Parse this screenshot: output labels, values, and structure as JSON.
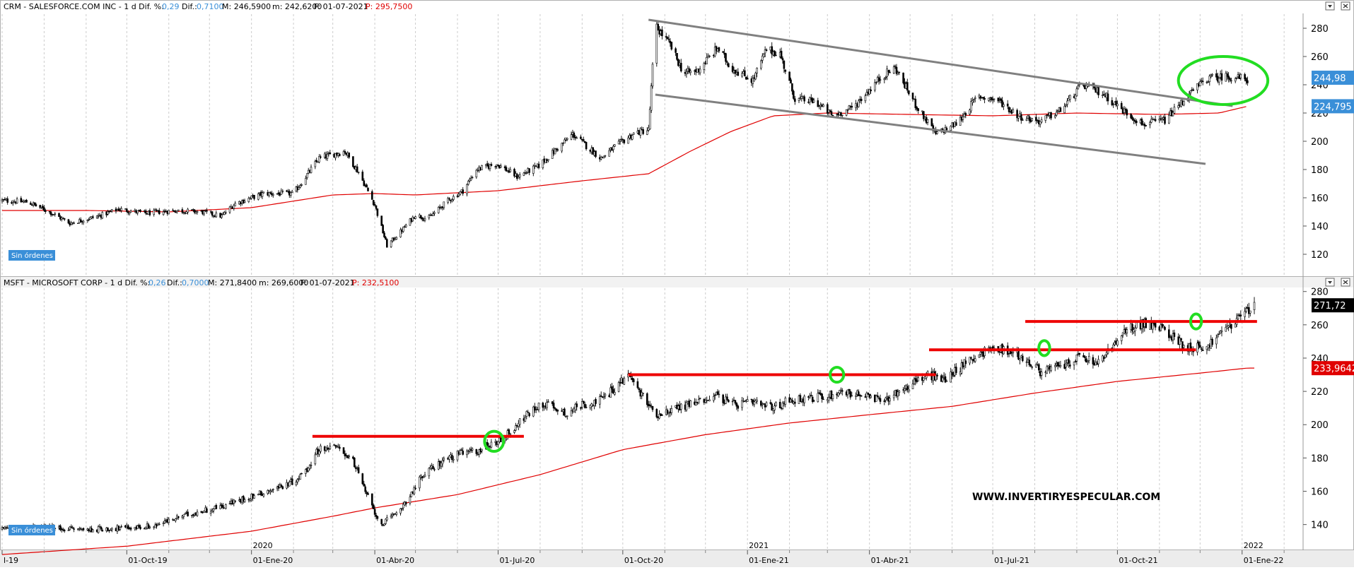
{
  "colors": {
    "candle": "#000000",
    "ma": "#e00000",
    "trend_gray": "#808080",
    "support_red": "#ee0000",
    "highlight_green": "#22dd22",
    "price_tag_blue": "#3a8fd8",
    "ma_tag_red": "#e00000",
    "label_blue": "#3a8fd8",
    "grid": "#cccccc"
  },
  "x_dates": {
    "start": "2019-07-01",
    "end": "2022-02-15",
    "month_ticks": [
      "2019-08-01",
      "2019-09-01",
      "2019-11-01",
      "2019-12-01",
      "2020-02-01",
      "2020-03-01",
      "2020-05-01",
      "2020-06-01",
      "2020-08-01",
      "2020-09-01",
      "2020-11-01",
      "2020-12-01",
      "2021-02-01",
      "2021-03-01",
      "2021-05-01",
      "2021-06-01",
      "2021-08-01",
      "2021-09-01",
      "2021-11-01",
      "2021-12-01",
      "2022-02-01"
    ],
    "labels": [
      {
        "date": "2019-07-01",
        "text": "l-19"
      },
      {
        "date": "2019-10-01",
        "text": "01-Oct-19"
      },
      {
        "date": "2020-01-01",
        "text": "01-Ene-20"
      },
      {
        "date": "2020-04-01",
        "text": "01-Abr-20"
      },
      {
        "date": "2020-07-01",
        "text": "01-Jul-20"
      },
      {
        "date": "2020-10-01",
        "text": "01-Oct-20"
      },
      {
        "date": "2021-01-01",
        "text": "01-Ene-21"
      },
      {
        "date": "2021-04-01",
        "text": "01-Abr-21"
      },
      {
        "date": "2021-07-01",
        "text": "01-Jul-21"
      },
      {
        "date": "2021-10-01",
        "text": "01-Oct-21"
      },
      {
        "date": "2022-01-01",
        "text": "01-Ene-22"
      }
    ],
    "year_marks": [
      {
        "date": "2020-01-01",
        "text": "2020"
      },
      {
        "date": "2021-01-01",
        "text": "2021"
      },
      {
        "date": "2022-01-01",
        "text": "2022"
      }
    ]
  },
  "chart_data": [
    {
      "type": "candlestick",
      "ticker": "CRM",
      "name": "SALESFORCE.COM INC",
      "header": {
        "prefix": "CRM - SALESFORCE.COM INC - 1 d Dif. %:",
        "dif_pct": "0,29",
        "dif_label": "Dif.:",
        "dif": "0,7100",
        "max_label": "M: 246,5900",
        "min_label": "m: 242,6200",
        "date_label": "F: 01-07-2021",
        "p_label": "P: 295,7500"
      },
      "ylim": [
        105,
        290
      ],
      "y_ticks": [
        120,
        140,
        160,
        180,
        200,
        220,
        240,
        260,
        280
      ],
      "price_tag": "244,98",
      "price_tag_value": 244.98,
      "ma_tag": "224,795",
      "ma_tag_value": 224.795,
      "label": "Sin órdenes",
      "close_anchors": [
        [
          "2019-07-01",
          158
        ],
        [
          "2019-07-20",
          157
        ],
        [
          "2019-08-05",
          150
        ],
        [
          "2019-08-20",
          142
        ],
        [
          "2019-09-10",
          147
        ],
        [
          "2019-09-25",
          152
        ],
        [
          "2019-10-15",
          149
        ],
        [
          "2019-11-05",
          151
        ],
        [
          "2019-11-25",
          150
        ],
        [
          "2019-12-10",
          147
        ],
        [
          "2019-12-20",
          156
        ],
        [
          "2020-01-10",
          163
        ],
        [
          "2020-02-01",
          163
        ],
        [
          "2020-02-10",
          175
        ],
        [
          "2020-02-20",
          188
        ],
        [
          "2020-03-10",
          193
        ],
        [
          "2020-03-20",
          178
        ],
        [
          "2020-04-01",
          155
        ],
        [
          "2020-04-10",
          126
        ],
        [
          "2020-04-20",
          136
        ],
        [
          "2020-05-01",
          148
        ],
        [
          "2020-05-10",
          145
        ],
        [
          "2020-05-25",
          158
        ],
        [
          "2020-06-05",
          165
        ],
        [
          "2020-06-15",
          180
        ],
        [
          "2020-06-30",
          184
        ],
        [
          "2020-07-15",
          175
        ],
        [
          "2020-07-30",
          182
        ],
        [
          "2020-08-15",
          196
        ],
        [
          "2020-08-25",
          205
        ],
        [
          "2020-09-05",
          196
        ],
        [
          "2020-09-15",
          188
        ],
        [
          "2020-09-25",
          196
        ],
        [
          "2020-10-10",
          206
        ],
        [
          "2020-10-20",
          208
        ],
        [
          "2020-10-25",
          282
        ],
        [
          "2020-11-05",
          268
        ],
        [
          "2020-11-15",
          248
        ],
        [
          "2020-11-25",
          250
        ],
        [
          "2020-12-10",
          266
        ],
        [
          "2020-12-20",
          252
        ],
        [
          "2021-01-05",
          243
        ],
        [
          "2021-01-15",
          265
        ],
        [
          "2021-01-25",
          262
        ],
        [
          "2021-02-05",
          230
        ],
        [
          "2021-02-20",
          228
        ],
        [
          "2021-03-05",
          218
        ],
        [
          "2021-03-20",
          224
        ],
        [
          "2021-04-10",
          246
        ],
        [
          "2021-04-20",
          252
        ],
        [
          "2021-05-05",
          226
        ],
        [
          "2021-05-20",
          205
        ],
        [
          "2021-06-05",
          213
        ],
        [
          "2021-06-20",
          232
        ],
        [
          "2021-07-05",
          229
        ],
        [
          "2021-07-20",
          218
        ],
        [
          "2021-08-05",
          214
        ],
        [
          "2021-08-20",
          222
        ],
        [
          "2021-09-05",
          240
        ],
        [
          "2021-09-20",
          234
        ],
        [
          "2021-10-05",
          222
        ],
        [
          "2021-10-20",
          212
        ],
        [
          "2021-11-05",
          215
        ],
        [
          "2021-11-20",
          230
        ],
        [
          "2021-12-05",
          244
        ],
        [
          "2021-12-20",
          246
        ],
        [
          "2022-01-05",
          244
        ]
      ],
      "ma_anchors": [
        [
          "2019-07-01",
          151
        ],
        [
          "2019-09-01",
          151
        ],
        [
          "2019-11-01",
          150
        ],
        [
          "2020-01-01",
          153
        ],
        [
          "2020-03-01",
          162
        ],
        [
          "2020-04-01",
          163
        ],
        [
          "2020-05-01",
          162
        ],
        [
          "2020-07-01",
          165
        ],
        [
          "2020-09-01",
          172
        ],
        [
          "2020-10-20",
          177
        ],
        [
          "2020-11-20",
          193
        ],
        [
          "2020-12-20",
          207
        ],
        [
          "2021-01-20",
          218
        ],
        [
          "2021-03-01",
          220
        ],
        [
          "2021-05-01",
          219
        ],
        [
          "2021-07-01",
          218
        ],
        [
          "2021-09-01",
          220
        ],
        [
          "2021-11-01",
          219
        ],
        [
          "2021-12-15",
          220
        ],
        [
          "2022-01-05",
          224.8
        ]
      ],
      "trendlines": [
        {
          "from": [
            "2020-10-20",
            286
          ],
          "to": [
            "2021-12-25",
            225
          ],
          "color": "trend_gray"
        },
        {
          "from": [
            "2020-10-25",
            233
          ],
          "to": [
            "2021-12-05",
            184
          ],
          "color": "trend_gray"
        }
      ],
      "ellipses": [
        {
          "center": [
            "2021-12-18",
            243
          ],
          "rx_days": 33,
          "ry_value": 17,
          "color": "highlight_green"
        }
      ]
    },
    {
      "type": "candlestick",
      "ticker": "MSFT",
      "name": "MICROSOFT CORP",
      "header": {
        "prefix": "MSFT - MICROSOFT CORP - 1 d Dif. %:",
        "dif_pct": "0,26",
        "dif_label": "Dif.:",
        "dif": "0,7000",
        "max_label": "M: 271,8400",
        "min_label": "m: 269,6000",
        "date_label": "F: 01-07-2021",
        "p_label": "P: 232,5100"
      },
      "ylim": [
        125,
        282
      ],
      "y_ticks": [
        140,
        160,
        180,
        200,
        220,
        240,
        260,
        280
      ],
      "price_tag": "271,72",
      "price_tag_value": 271.72,
      "ma_tag": "233,9642",
      "ma_tag_value": 233.9642,
      "label": "Sin órdenes",
      "watermark": "WWW.INVERTIRYESPECULAR.COM",
      "close_anchors": [
        [
          "2019-07-01",
          137
        ],
        [
          "2019-08-01",
          138
        ],
        [
          "2019-09-01",
          137
        ],
        [
          "2019-10-01",
          138
        ],
        [
          "2019-10-20",
          139
        ],
        [
          "2019-11-15",
          146
        ],
        [
          "2019-12-10",
          151
        ],
        [
          "2020-01-01",
          157
        ],
        [
          "2020-01-20",
          162
        ],
        [
          "2020-02-01",
          166
        ],
        [
          "2020-02-10",
          172
        ],
        [
          "2020-02-20",
          186
        ],
        [
          "2020-03-05",
          186
        ],
        [
          "2020-03-15",
          180
        ],
        [
          "2020-03-25",
          160
        ],
        [
          "2020-04-05",
          140
        ],
        [
          "2020-04-15",
          145
        ],
        [
          "2020-04-25",
          155
        ],
        [
          "2020-05-05",
          168
        ],
        [
          "2020-05-15",
          175
        ],
        [
          "2020-05-25",
          180
        ],
        [
          "2020-06-05",
          183
        ],
        [
          "2020-06-15",
          184
        ],
        [
          "2020-06-25",
          188
        ],
        [
          "2020-07-05",
          192
        ],
        [
          "2020-07-15",
          200
        ],
        [
          "2020-07-25",
          208
        ],
        [
          "2020-08-05",
          213
        ],
        [
          "2020-08-20",
          207
        ],
        [
          "2020-09-01",
          212
        ],
        [
          "2020-09-15",
          215
        ],
        [
          "2020-09-25",
          222
        ],
        [
          "2020-10-05",
          230
        ],
        [
          "2020-10-15",
          218
        ],
        [
          "2020-10-25",
          206
        ],
        [
          "2020-11-10",
          210
        ],
        [
          "2020-11-25",
          214
        ],
        [
          "2020-12-10",
          218
        ],
        [
          "2020-12-20",
          212
        ],
        [
          "2021-01-05",
          213
        ],
        [
          "2021-01-20",
          210
        ],
        [
          "2021-02-01",
          215
        ],
        [
          "2021-02-15",
          216
        ],
        [
          "2021-03-01",
          217
        ],
        [
          "2021-03-10",
          220
        ],
        [
          "2021-03-25",
          218
        ],
        [
          "2021-04-10",
          214
        ],
        [
          "2021-04-25",
          221
        ],
        [
          "2021-05-05",
          226
        ],
        [
          "2021-05-15",
          230
        ],
        [
          "2021-05-25",
          227
        ],
        [
          "2021-06-05",
          233
        ],
        [
          "2021-06-15",
          240
        ],
        [
          "2021-06-25",
          244
        ],
        [
          "2021-07-05",
          246
        ],
        [
          "2021-07-20",
          242
        ],
        [
          "2021-08-05",
          232
        ],
        [
          "2021-08-20",
          235
        ],
        [
          "2021-09-05",
          241
        ],
        [
          "2021-09-15",
          236
        ],
        [
          "2021-10-01",
          250
        ],
        [
          "2021-10-10",
          258
        ],
        [
          "2021-10-20",
          261
        ],
        [
          "2021-11-05",
          257
        ],
        [
          "2021-11-20",
          247
        ],
        [
          "2021-12-05",
          246
        ],
        [
          "2021-12-20",
          258
        ],
        [
          "2022-01-01",
          266
        ],
        [
          "2022-01-10",
          271
        ]
      ],
      "ma_anchors": [
        [
          "2019-07-01",
          122
        ],
        [
          "2019-10-01",
          127
        ],
        [
          "2020-01-01",
          136
        ],
        [
          "2020-03-01",
          145
        ],
        [
          "2020-04-01",
          150
        ],
        [
          "2020-06-01",
          158
        ],
        [
          "2020-08-01",
          170
        ],
        [
          "2020-10-01",
          185
        ],
        [
          "2020-12-01",
          194
        ],
        [
          "2021-02-01",
          201
        ],
        [
          "2021-04-01",
          206
        ],
        [
          "2021-06-01",
          211
        ],
        [
          "2021-08-01",
          219
        ],
        [
          "2021-10-01",
          226
        ],
        [
          "2021-12-01",
          231
        ],
        [
          "2022-01-05",
          234
        ]
      ],
      "support_lines": [
        {
          "from": [
            "2020-02-15",
            193
          ],
          "to": [
            "2020-07-20",
            193
          ]
        },
        {
          "from": [
            "2020-10-05",
            230
          ],
          "to": [
            "2021-05-20",
            230
          ]
        },
        {
          "from": [
            "2021-05-15",
            245
          ],
          "to": [
            "2021-11-28",
            245
          ]
        },
        {
          "from": [
            "2021-07-25",
            262
          ],
          "to": [
            "2022-01-12",
            262
          ]
        }
      ],
      "circles": [
        {
          "center": [
            "2020-06-28",
            190
          ],
          "r_days": 7,
          "r_value": 6
        },
        {
          "center": [
            "2021-03-08",
            230
          ],
          "r_days": 5,
          "r_value": 4.5
        },
        {
          "center": [
            "2021-08-08",
            246
          ],
          "r_days": 4,
          "r_value": 4.5
        },
        {
          "center": [
            "2021-11-28",
            262
          ],
          "r_days": 4,
          "r_value": 4.5
        }
      ]
    }
  ]
}
